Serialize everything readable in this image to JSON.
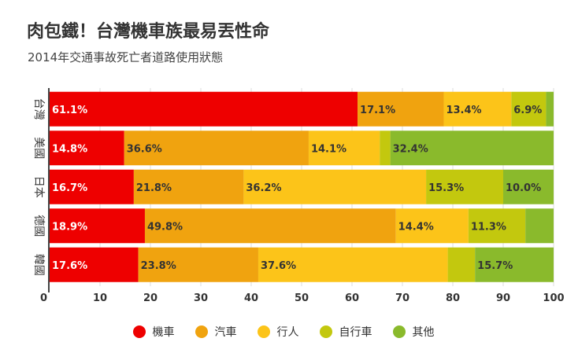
{
  "header": {
    "title": "肉包鐵！台灣機車族最易丟性命",
    "subtitle": "2014年交通事故死亡者道路使用狀態"
  },
  "chart_data": {
    "type": "bar",
    "orientation": "horizontal",
    "stacked": true,
    "title": "肉包鐵！台灣機車族最易丟性命",
    "subtitle": "2014年交通事故死亡者道路使用狀態",
    "categories": [
      "台灣",
      "美國",
      "日本",
      "德國",
      "韓國"
    ],
    "series": [
      {
        "name": "機車",
        "color": "#ee0000",
        "values": [
          61.1,
          14.8,
          16.7,
          18.9,
          17.6
        ]
      },
      {
        "name": "汽車",
        "color": "#f0a30f",
        "values": [
          17.1,
          36.6,
          21.8,
          49.8,
          23.8
        ]
      },
      {
        "name": "行人",
        "color": "#fcc419",
        "values": [
          13.4,
          14.1,
          36.2,
          14.4,
          37.6
        ]
      },
      {
        "name": "自行車",
        "color": "#c3c80e",
        "values": [
          6.9,
          2.1,
          15.3,
          11.3,
          5.4
        ]
      },
      {
        "name": "其他",
        "color": "#8aba2c",
        "values": [
          1.5,
          32.4,
          10.0,
          5.6,
          15.7
        ]
      }
    ],
    "data_labels": [
      [
        "61.1%",
        "17.1%",
        "13.4%",
        "6.9%",
        ""
      ],
      [
        "14.8%",
        "36.6%",
        "14.1%",
        "",
        "32.4%"
      ],
      [
        "16.7%",
        "21.8%",
        "36.2%",
        "15.3%",
        "10.0%"
      ],
      [
        "18.9%",
        "49.8%",
        "14.4%",
        "11.3%",
        ""
      ],
      [
        "17.6%",
        "23.8%",
        "37.6%",
        "",
        "15.7%"
      ]
    ],
    "xlim": [
      0,
      100
    ],
    "xticks": [
      "0",
      "10",
      "20",
      "30",
      "40",
      "50",
      "60",
      "70",
      "80",
      "90",
      "100"
    ],
    "grid": true,
    "legend_position": "bottom"
  }
}
